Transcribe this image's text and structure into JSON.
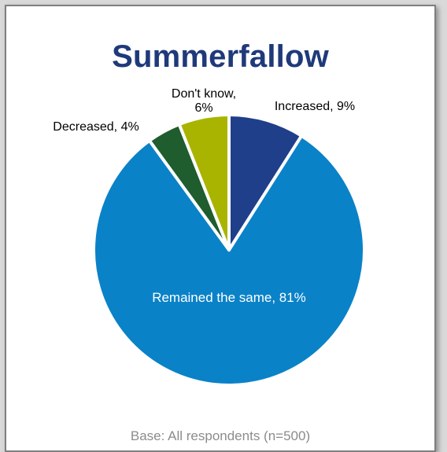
{
  "chart_data": {
    "type": "pie",
    "title": "Summerfallow",
    "slices": [
      {
        "label": "Increased",
        "value": 9,
        "label_text": "Increased, 9%",
        "color": "#1f3f8a"
      },
      {
        "label": "Remained the same",
        "value": 81,
        "label_text": "Remained the same, 81%",
        "color": "#0a82c8"
      },
      {
        "label": "Decreased",
        "value": 4,
        "label_text": "Decreased, 4%",
        "color": "#1f5c2e"
      },
      {
        "label": "Don't know",
        "value": 6,
        "label_text_lines": [
          "Don't know,",
          "6%"
        ],
        "color": "#a8b400"
      }
    ],
    "footnote": "Base: All respondents (n=500)"
  }
}
